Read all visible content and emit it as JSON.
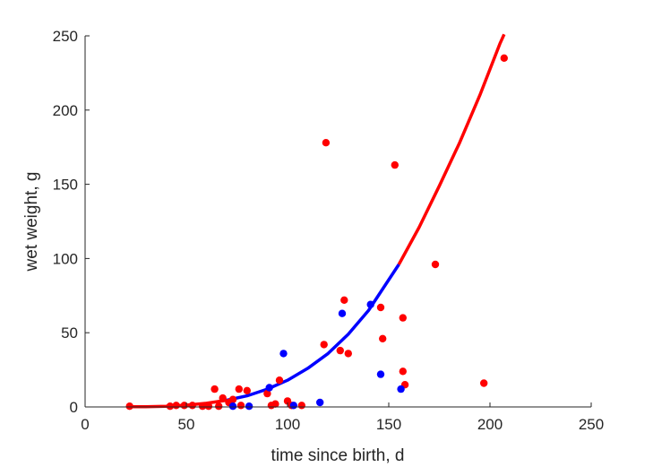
{
  "chart_data": {
    "type": "scatter",
    "title": "",
    "xlabel": "time since birth, d",
    "ylabel": "wet weight, g",
    "xlim": [
      0,
      250
    ],
    "ylim": [
      0,
      250
    ],
    "xticks": [
      0,
      50,
      100,
      150,
      200,
      250
    ],
    "yticks": [
      0,
      50,
      100,
      150,
      200,
      250
    ],
    "grid": false,
    "colors": {
      "red": "#ff0000",
      "blue": "#0000ff",
      "axis": "#262626"
    },
    "series": [
      {
        "type": "scatter",
        "color": "#ff0000",
        "points": [
          [
            22,
            0.5
          ],
          [
            42,
            0.5
          ],
          [
            45,
            1
          ],
          [
            49,
            1
          ],
          [
            53,
            1
          ],
          [
            58,
            0.5
          ],
          [
            61,
            0.5
          ],
          [
            64,
            12
          ],
          [
            66,
            0.5
          ],
          [
            68,
            6
          ],
          [
            71,
            3
          ],
          [
            73,
            5
          ],
          [
            76,
            12
          ],
          [
            77,
            1
          ],
          [
            80,
            11
          ],
          [
            90,
            9
          ],
          [
            92,
            1
          ],
          [
            94,
            2
          ],
          [
            96,
            18
          ],
          [
            100,
            4
          ],
          [
            102,
            1
          ],
          [
            107,
            1
          ],
          [
            118,
            42
          ],
          [
            119,
            178
          ],
          [
            126,
            38
          ],
          [
            128,
            72
          ],
          [
            130,
            36
          ],
          [
            146,
            67
          ],
          [
            147,
            46
          ],
          [
            153,
            163
          ],
          [
            157,
            60
          ],
          [
            157,
            24
          ],
          [
            158,
            15
          ],
          [
            173,
            96
          ],
          [
            197,
            16
          ],
          [
            207,
            235
          ]
        ]
      },
      {
        "type": "scatter",
        "color": "#0000ff",
        "points": [
          [
            73,
            0.5
          ],
          [
            81,
            0.5
          ],
          [
            91,
            13
          ],
          [
            98,
            36
          ],
          [
            103,
            1
          ],
          [
            116,
            3
          ],
          [
            127,
            63
          ],
          [
            141,
            69
          ],
          [
            146,
            22
          ],
          [
            156,
            12
          ]
        ]
      },
      {
        "type": "line",
        "color": "#ff0000",
        "x": [
          22,
          30,
          40,
          50,
          60,
          70
        ],
        "y": [
          0.1,
          0.2,
          0.5,
          1.2,
          2.5,
          4.5
        ]
      },
      {
        "type": "line",
        "color": "#0000ff",
        "x": [
          70,
          80,
          90,
          100,
          110,
          120,
          130,
          140,
          155
        ],
        "y": [
          4.5,
          7.5,
          12,
          18,
          26,
          36,
          49,
          65,
          96
        ]
      },
      {
        "type": "line",
        "color": "#ff0000",
        "x": [
          155,
          165,
          175,
          185,
          195,
          205,
          207
        ],
        "y": [
          96,
          121,
          149,
          178,
          210,
          245,
          251
        ]
      }
    ]
  }
}
